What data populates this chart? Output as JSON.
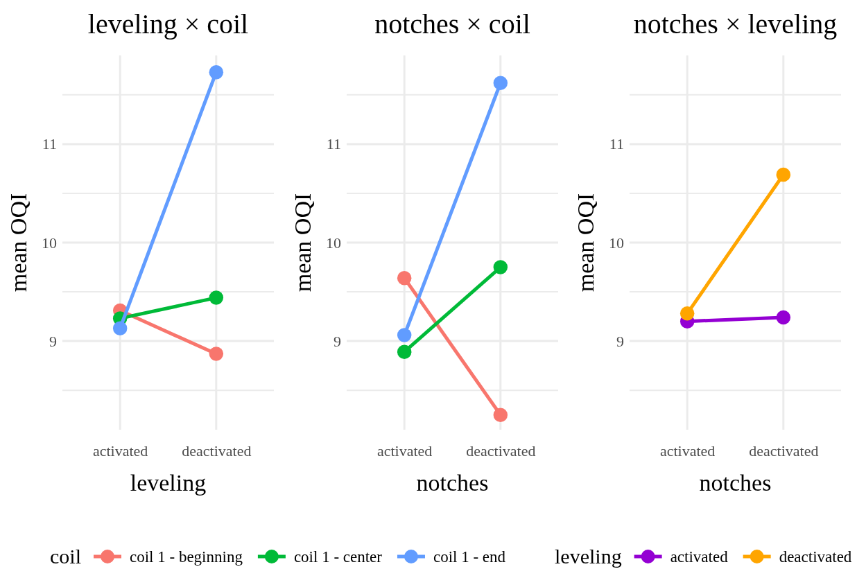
{
  "chart_data": [
    {
      "type": "line",
      "title": "leveling × coil",
      "xlabel": "leveling",
      "ylabel": "mean OQI",
      "categories": [
        "activated",
        "deactivated"
      ],
      "ylim": [
        8.1,
        11.9
      ],
      "yticks": [
        {
          "value": 8.5,
          "label": null
        },
        9,
        {
          "value": 9.5,
          "label": null
        },
        10,
        {
          "value": 10.5,
          "label": null
        },
        11,
        {
          "value": 11.5,
          "label": null
        }
      ],
      "grid": true,
      "marker": "circle",
      "legend": "bottom",
      "legend_title": "coil",
      "series": [
        {
          "name": "coil 1 - beginning",
          "color": "#f8766d",
          "values": [
            9.31,
            8.87
          ]
        },
        {
          "name": "coil 1 - center",
          "color": "#00ba38",
          "values": [
            9.23,
            9.44
          ]
        },
        {
          "name": "coil 1 - end",
          "color": "#619cff",
          "values": [
            9.13,
            11.73
          ]
        }
      ]
    },
    {
      "type": "line",
      "title": "notches × coil",
      "xlabel": "notches",
      "ylabel": "mean OQI",
      "categories": [
        "activated",
        "deactivated"
      ],
      "ylim": [
        8.1,
        11.9
      ],
      "yticks": [
        {
          "value": 8.5,
          "label": null
        },
        9,
        {
          "value": 9.5,
          "label": null
        },
        10,
        {
          "value": 10.5,
          "label": null
        },
        11,
        {
          "value": 11.5,
          "label": null
        }
      ],
      "grid": true,
      "marker": "circle",
      "series": [
        {
          "color": "#f8766d",
          "values": [
            9.64,
            8.25
          ]
        },
        {
          "color": "#00ba38",
          "values": [
            8.89,
            9.75
          ]
        },
        {
          "color": "#619cff",
          "values": [
            9.06,
            11.62
          ]
        }
      ]
    },
    {
      "type": "line",
      "title": "notches × leveling",
      "xlabel": "notches",
      "ylabel": "mean OQI",
      "categories": [
        "activated",
        "deactivated"
      ],
      "ylim": [
        8.1,
        11.9
      ],
      "yticks": [
        {
          "value": 8.5,
          "label": null
        },
        9,
        {
          "value": 9.5,
          "label": null
        },
        10,
        {
          "value": 10.5,
          "label": null
        },
        11,
        {
          "value": 11.5,
          "label": null
        }
      ],
      "grid": true,
      "marker": "circle",
      "legend": "bottom",
      "legend_title": "leveling",
      "series": [
        {
          "name": "activated",
          "color": "#9400d3",
          "values": [
            9.2,
            9.24
          ]
        },
        {
          "name": "deactivated",
          "color": "#ffa500",
          "values": [
            9.28,
            10.69
          ]
        }
      ]
    }
  ]
}
